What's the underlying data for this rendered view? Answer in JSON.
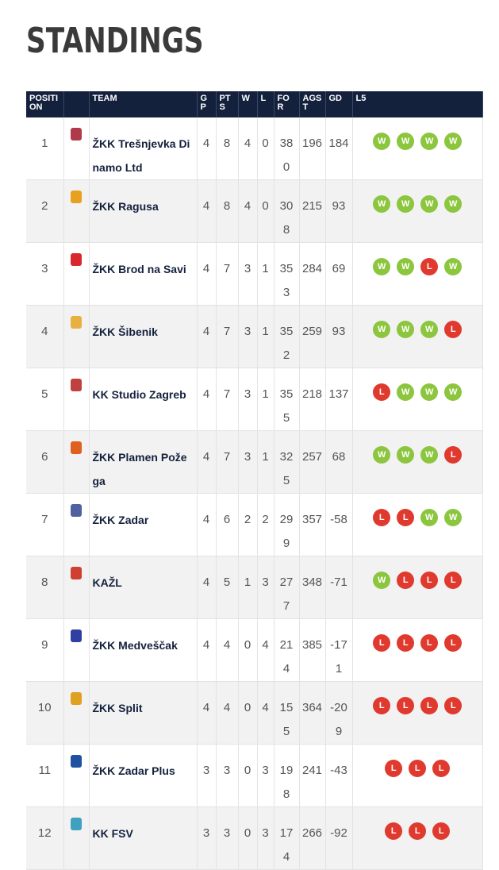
{
  "title": "STANDINGS",
  "headers": {
    "position": "POSITION",
    "team": "TEAM",
    "gp": "GP",
    "pts": "PTS",
    "w": "W",
    "l": "L",
    "for": "FOR",
    "agst": "AGST",
    "gd": "GD",
    "l5": "L5"
  },
  "colors": {
    "header_bg": "#14213d",
    "win": "#8cc63f",
    "loss": "#e03a2f"
  },
  "rows": [
    {
      "pos": "1",
      "team": "ŽKK Trešnjevka Dinamo Ltd",
      "gp": "4",
      "pts": "8",
      "w": "4",
      "l": "0",
      "for": "380",
      "agst": "196",
      "gd": "184",
      "l5": [
        "W",
        "W",
        "W",
        "W"
      ],
      "logo": "#b03a4a"
    },
    {
      "pos": "2",
      "team": "ŽKK Ragusa",
      "gp": "4",
      "pts": "8",
      "w": "4",
      "l": "0",
      "for": "308",
      "agst": "215",
      "gd": "93",
      "l5": [
        "W",
        "W",
        "W",
        "W"
      ],
      "logo": "#e8a020"
    },
    {
      "pos": "3",
      "team": "ŽKK Brod na Savi",
      "gp": "4",
      "pts": "7",
      "w": "3",
      "l": "1",
      "for": "353",
      "agst": "284",
      "gd": "69",
      "l5": [
        "W",
        "W",
        "L",
        "W"
      ],
      "logo": "#d8282e"
    },
    {
      "pos": "4",
      "team": "ŽKK Šibenik",
      "gp": "4",
      "pts": "7",
      "w": "3",
      "l": "1",
      "for": "352",
      "agst": "259",
      "gd": "93",
      "l5": [
        "W",
        "W",
        "W",
        "L"
      ],
      "logo": "#e8b040"
    },
    {
      "pos": "5",
      "team": "KK Studio Zagreb",
      "gp": "4",
      "pts": "7",
      "w": "3",
      "l": "1",
      "for": "355",
      "agst": "218",
      "gd": "137",
      "l5": [
        "L",
        "W",
        "W",
        "W"
      ],
      "logo": "#c04040"
    },
    {
      "pos": "6",
      "team": "ŽKK Plamen Požega",
      "gp": "4",
      "pts": "7",
      "w": "3",
      "l": "1",
      "for": "325",
      "agst": "257",
      "gd": "68",
      "l5": [
        "W",
        "W",
        "W",
        "L"
      ],
      "logo": "#e06020"
    },
    {
      "pos": "7",
      "team": "ŽKK Zadar",
      "gp": "4",
      "pts": "6",
      "w": "2",
      "l": "2",
      "for": "299",
      "agst": "357",
      "gd": "-58",
      "l5": [
        "L",
        "L",
        "W",
        "W"
      ],
      "logo": "#5060a0"
    },
    {
      "pos": "8",
      "team": "KAŽL",
      "gp": "4",
      "pts": "5",
      "w": "1",
      "l": "3",
      "for": "277",
      "agst": "348",
      "gd": "-71",
      "l5": [
        "W",
        "L",
        "L",
        "L"
      ],
      "logo": "#d04030"
    },
    {
      "pos": "9",
      "team": "ŽKK Medveščak",
      "gp": "4",
      "pts": "4",
      "w": "0",
      "l": "4",
      "for": "214",
      "agst": "385",
      "gd": "-171",
      "l5": [
        "L",
        "L",
        "L",
        "L"
      ],
      "logo": "#3040a0"
    },
    {
      "pos": "10",
      "team": "ŽKK Split",
      "gp": "4",
      "pts": "4",
      "w": "0",
      "l": "4",
      "for": "155",
      "agst": "364",
      "gd": "-209",
      "l5": [
        "L",
        "L",
        "L",
        "L"
      ],
      "logo": "#e0a020"
    },
    {
      "pos": "11",
      "team": "ŽKK Zadar Plus",
      "gp": "3",
      "pts": "3",
      "w": "0",
      "l": "3",
      "for": "198",
      "agst": "241",
      "gd": "-43",
      "l5": [
        "L",
        "L",
        "L"
      ],
      "logo": "#2050a0"
    },
    {
      "pos": "12",
      "team": "KK FSV",
      "gp": "3",
      "pts": "3",
      "w": "0",
      "l": "3",
      "for": "174",
      "agst": "266",
      "gd": "-92",
      "l5": [
        "L",
        "L",
        "L"
      ],
      "logo": "#40a0c0"
    }
  ]
}
